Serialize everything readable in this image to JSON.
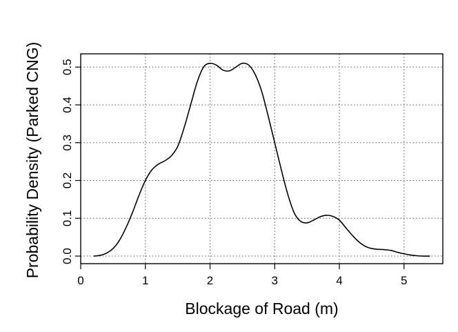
{
  "chart_data": {
    "type": "line",
    "title": "",
    "xlabel": "Blockage of Road (m)",
    "ylabel": "Probability Density (Parked CNG)",
    "xlim": [
      0,
      5.6
    ],
    "ylim": [
      -0.02,
      0.535
    ],
    "xticks": [
      0,
      1,
      2,
      3,
      4,
      5
    ],
    "yticks": [
      0.0,
      0.1,
      0.2,
      0.3,
      0.4,
      0.5
    ],
    "xtick_labels": [
      "0",
      "1",
      "2",
      "3",
      "4",
      "5"
    ],
    "ytick_labels": [
      "0.0",
      "0.1",
      "0.2",
      "0.3",
      "0.4",
      "0.5"
    ],
    "grid": true,
    "grid_style": "dotted",
    "series": [
      {
        "color": "#000000",
        "x": [
          0.2,
          0.3,
          0.4,
          0.5,
          0.6,
          0.7,
          0.8,
          0.9,
          1.0,
          1.1,
          1.2,
          1.3,
          1.4,
          1.5,
          1.6,
          1.7,
          1.8,
          1.9,
          2.0,
          2.1,
          2.2,
          2.3,
          2.4,
          2.5,
          2.6,
          2.7,
          2.8,
          2.9,
          3.0,
          3.1,
          3.2,
          3.3,
          3.4,
          3.5,
          3.6,
          3.7,
          3.8,
          3.9,
          4.0,
          4.1,
          4.2,
          4.3,
          4.4,
          4.5,
          4.6,
          4.7,
          4.8,
          4.9,
          5.0,
          5.1,
          5.2,
          5.3,
          5.4
        ],
        "y": [
          0.0,
          0.002,
          0.008,
          0.02,
          0.042,
          0.075,
          0.115,
          0.16,
          0.2,
          0.228,
          0.243,
          0.252,
          0.265,
          0.29,
          0.34,
          0.4,
          0.46,
          0.5,
          0.51,
          0.505,
          0.492,
          0.49,
          0.5,
          0.51,
          0.505,
          0.48,
          0.435,
          0.37,
          0.3,
          0.23,
          0.165,
          0.115,
          0.092,
          0.088,
          0.095,
          0.104,
          0.108,
          0.105,
          0.095,
          0.075,
          0.055,
          0.038,
          0.026,
          0.02,
          0.018,
          0.017,
          0.015,
          0.01,
          0.006,
          0.003,
          0.001,
          0.0,
          0.0
        ]
      }
    ]
  }
}
